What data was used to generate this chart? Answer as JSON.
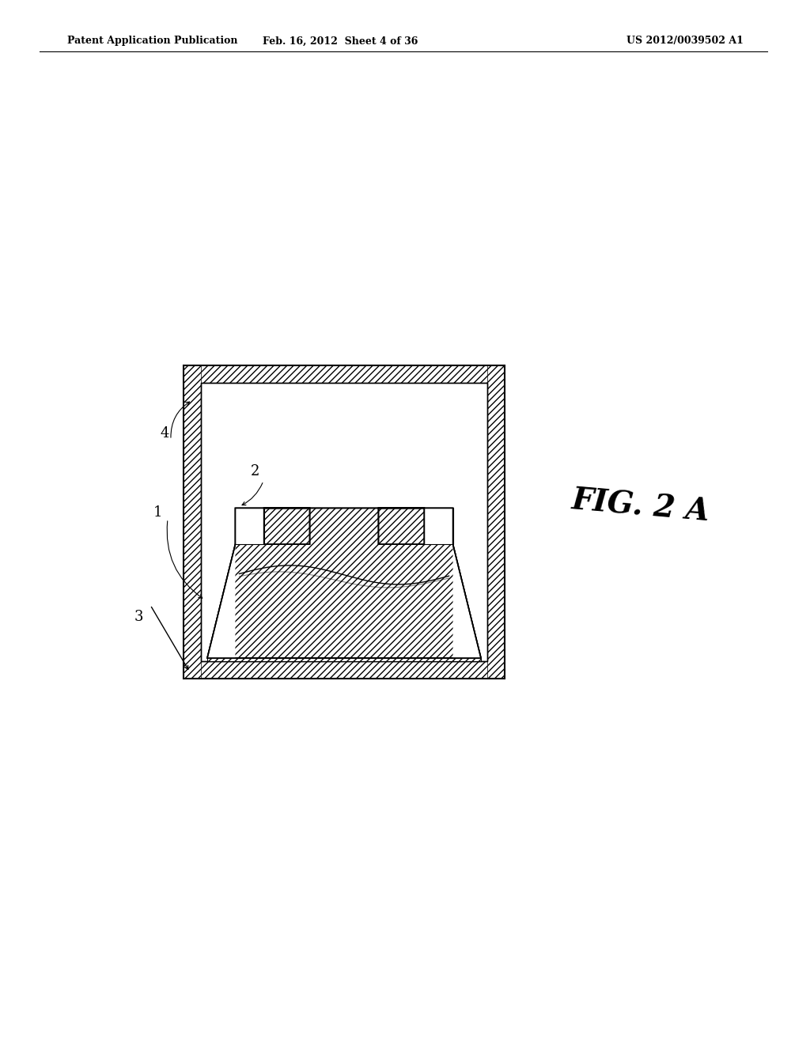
{
  "bg_color": "#ffffff",
  "header_left": "Patent Application Publication",
  "header_mid": "Feb. 16, 2012  Sheet 4 of 36",
  "header_right": "US 2012/0039502 A1",
  "fig_label": "FIG. 2 A",
  "label_1": "1",
  "label_2": "2",
  "label_3": "3",
  "label_4": "4",
  "line_color": "#000000",
  "hatch_color": "#000000",
  "hatch_bg": "#ffffff"
}
